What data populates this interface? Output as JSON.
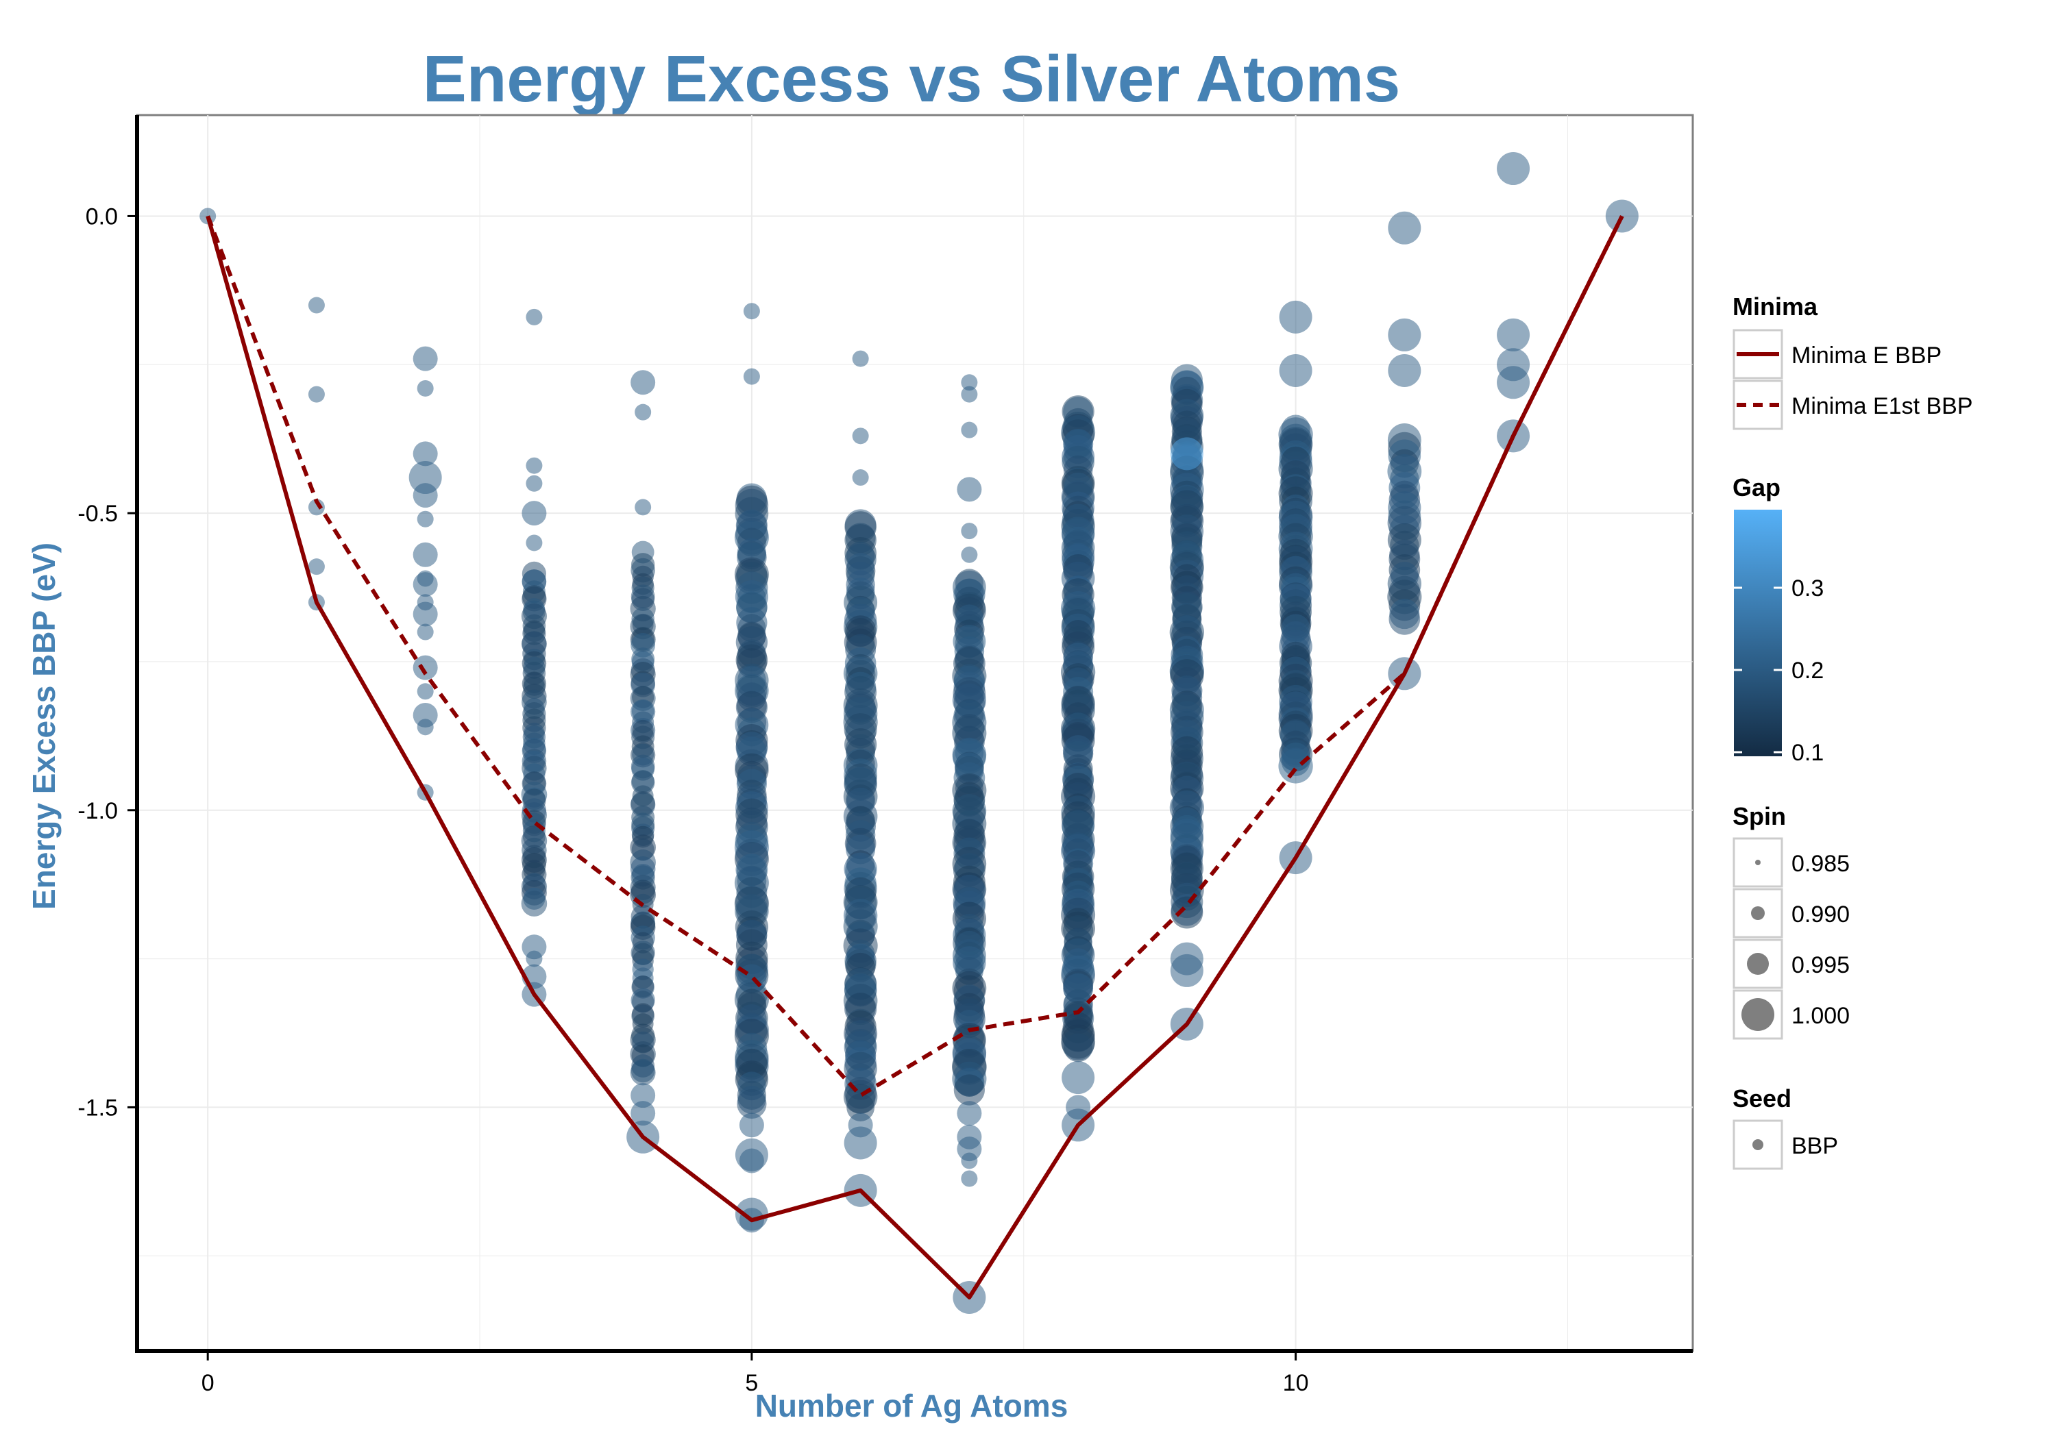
{
  "chart_data": {
    "type": "scatter",
    "title": "Energy Excess vs Silver Atoms",
    "xlabel": "Number of Ag Atoms",
    "ylabel": "Energy Excess BBP (eV)",
    "xlim": [
      -0.65,
      13.65
    ],
    "ylim": [
      -1.91,
      0.17
    ],
    "x_ticks": [
      0,
      5,
      10
    ],
    "x_tick_labels": [
      "0",
      "5",
      "10"
    ],
    "y_ticks": [
      0.0,
      -0.5,
      -1.0,
      -1.5
    ],
    "y_tick_labels": [
      "0.0",
      "-0.5",
      "-1.0",
      "-1.5"
    ],
    "grid": true,
    "legend_position": "right",
    "colors": {
      "title": "#4682B4",
      "points": "#2E5A87",
      "points_light": "#4EA4E6",
      "line": "#8B0000",
      "panel_border": "#7F7F7F",
      "grid": "#EBEBEB"
    },
    "lines": [
      {
        "name": "Minima E BBP",
        "style": "solid",
        "x": [
          0,
          1,
          2,
          3,
          4,
          5,
          6,
          7,
          8,
          9,
          10,
          11,
          12,
          13
        ],
        "y": [
          0.0,
          -0.65,
          -0.97,
          -1.31,
          -1.55,
          -1.69,
          -1.64,
          -1.82,
          -1.53,
          -1.36,
          -1.08,
          -0.77,
          -0.37,
          0.0
        ]
      },
      {
        "name": "Minima E1st BBP",
        "style": "dashed",
        "x": [
          0,
          1,
          2,
          3,
          4,
          5,
          6,
          7,
          8,
          9,
          10,
          11,
          12,
          13
        ],
        "y": [
          0.0,
          -0.48,
          -0.77,
          -1.02,
          -1.16,
          -1.28,
          -1.48,
          -1.37,
          -1.34,
          -1.16,
          -0.93,
          -0.77,
          -0.37,
          0.0
        ]
      }
    ],
    "points": {
      "marker_opacity": 0.5,
      "columns": [
        {
          "x": 0,
          "distribution": [],
          "extras": [
            {
              "y": 0.0,
              "spin": 0.99
            }
          ]
        },
        {
          "x": 1,
          "distribution": [],
          "extras": [
            {
              "y": -0.15,
              "spin": 0.99
            },
            {
              "y": -0.3,
              "spin": 0.99
            },
            {
              "y": -0.49,
              "spin": 0.99
            },
            {
              "y": -0.59,
              "spin": 0.99
            },
            {
              "y": -0.65,
              "spin": 0.99
            }
          ]
        },
        {
          "x": 2,
          "distribution": [],
          "extras": [
            {
              "y": -0.24,
              "spin": 0.995
            },
            {
              "y": -0.29,
              "spin": 0.99
            },
            {
              "y": -0.4,
              "spin": 0.995
            },
            {
              "y": -0.44,
              "spin": 1.0
            },
            {
              "y": -0.47,
              "spin": 0.995
            },
            {
              "y": -0.51,
              "spin": 0.99
            },
            {
              "y": -0.57,
              "spin": 0.995
            },
            {
              "y": -0.61,
              "spin": 0.99
            },
            {
              "y": -0.62,
              "spin": 0.995
            },
            {
              "y": -0.65,
              "spin": 0.99
            },
            {
              "y": -0.67,
              "spin": 0.995
            },
            {
              "y": -0.7,
              "spin": 0.99
            },
            {
              "y": -0.76,
              "spin": 0.995
            },
            {
              "y": -0.8,
              "spin": 0.99
            },
            {
              "y": -0.84,
              "spin": 0.995
            },
            {
              "y": -0.86,
              "spin": 0.99
            },
            {
              "y": -0.97,
              "spin": 0.99
            }
          ]
        },
        {
          "x": 3,
          "distribution": [
            -0.6,
            -1.16,
            60,
            0.995
          ],
          "extras": [
            {
              "y": -0.17,
              "spin": 0.99
            },
            {
              "y": -0.42,
              "spin": 0.99
            },
            {
              "y": -0.45,
              "spin": 0.99
            },
            {
              "y": -0.5,
              "spin": 0.995
            },
            {
              "y": -0.55,
              "spin": 0.99
            },
            {
              "y": -1.23,
              "spin": 0.995
            },
            {
              "y": -1.25,
              "spin": 0.99
            },
            {
              "y": -1.28,
              "spin": 0.995
            },
            {
              "y": -1.31,
              "spin": 0.995
            }
          ]
        },
        {
          "x": 4,
          "distribution": [
            -0.57,
            -1.45,
            80,
            0.995
          ],
          "extras": [
            {
              "y": -0.28,
              "spin": 0.995
            },
            {
              "y": -0.33,
              "spin": 0.99
            },
            {
              "y": -0.49,
              "spin": 0.99
            },
            {
              "y": -1.48,
              "spin": 0.995
            },
            {
              "y": -1.51,
              "spin": 0.995
            },
            {
              "y": -1.55,
              "spin": 1.0
            }
          ]
        },
        {
          "x": 5,
          "distribution": [
            -0.47,
            -1.5,
            100,
            1.0
          ],
          "extras": [
            {
              "y": -0.16,
              "spin": 0.99
            },
            {
              "y": -0.27,
              "spin": 0.99
            },
            {
              "y": -1.53,
              "spin": 0.995
            },
            {
              "y": -1.58,
              "spin": 1.0
            },
            {
              "y": -1.59,
              "spin": 0.995
            },
            {
              "y": -1.68,
              "spin": 1.0
            },
            {
              "y": -1.69,
              "spin": 0.995
            }
          ]
        },
        {
          "x": 6,
          "distribution": [
            -0.52,
            -1.5,
            100,
            1.0
          ],
          "extras": [
            {
              "y": -0.24,
              "spin": 0.99
            },
            {
              "y": -0.37,
              "spin": 0.99
            },
            {
              "y": -0.44,
              "spin": 0.99
            },
            {
              "y": -1.53,
              "spin": 0.995
            },
            {
              "y": -1.56,
              "spin": 1.0
            },
            {
              "y": -1.64,
              "spin": 1.0
            }
          ]
        },
        {
          "x": 7,
          "distribution": [
            -0.61,
            -1.47,
            100,
            1.0
          ],
          "extras": [
            {
              "y": -0.28,
              "spin": 0.99
            },
            {
              "y": -0.3,
              "spin": 0.99
            },
            {
              "y": -0.36,
              "spin": 0.99
            },
            {
              "y": -0.46,
              "spin": 0.995
            },
            {
              "y": -0.53,
              "spin": 0.99
            },
            {
              "y": -0.57,
              "spin": 0.99
            },
            {
              "y": -1.51,
              "spin": 0.995
            },
            {
              "y": -1.55,
              "spin": 0.995
            },
            {
              "y": -1.57,
              "spin": 0.995
            },
            {
              "y": -1.59,
              "spin": 0.99
            },
            {
              "y": -1.62,
              "spin": 0.99
            },
            {
              "y": -1.82,
              "spin": 1.0
            }
          ]
        },
        {
          "x": 8,
          "distribution": [
            -0.33,
            -1.4,
            140,
            1.0
          ],
          "extras": [
            {
              "y": -1.45,
              "spin": 1.0
            },
            {
              "y": -1.5,
              "spin": 0.995
            },
            {
              "y": -1.53,
              "spin": 1.0
            }
          ]
        },
        {
          "x": 9,
          "distribution": [
            -0.28,
            -1.17,
            120,
            1.0
          ],
          "extras": [
            {
              "y": -1.25,
              "spin": 1.0
            },
            {
              "y": -1.27,
              "spin": 1.0
            },
            {
              "y": -1.36,
              "spin": 1.0
            },
            {
              "y": -0.4,
              "spin": 1.0,
              "gap": 0.36
            }
          ]
        },
        {
          "x": 10,
          "distribution": [
            -0.36,
            -0.93,
            80,
            1.0
          ],
          "extras": [
            {
              "y": -0.17,
              "spin": 1.0
            },
            {
              "y": -0.26,
              "spin": 1.0
            },
            {
              "y": -1.08,
              "spin": 1.0
            }
          ]
        },
        {
          "x": 11,
          "distribution": [
            -0.38,
            -0.68,
            25,
            1.0
          ],
          "extras": [
            {
              "y": -0.02,
              "spin": 1.0
            },
            {
              "y": -0.2,
              "spin": 1.0
            },
            {
              "y": -0.26,
              "spin": 1.0
            },
            {
              "y": -0.77,
              "spin": 1.0
            }
          ]
        },
        {
          "x": 12,
          "distribution": [],
          "extras": [
            {
              "y": 0.08,
              "spin": 1.0
            },
            {
              "y": -0.2,
              "spin": 1.0
            },
            {
              "y": -0.25,
              "spin": 1.0
            },
            {
              "y": -0.28,
              "spin": 1.0
            },
            {
              "y": -0.37,
              "spin": 1.0
            }
          ]
        },
        {
          "x": 13,
          "distribution": [],
          "extras": [
            {
              "y": 0.0,
              "spin": 1.0
            }
          ]
        }
      ]
    },
    "legend": {
      "minima": {
        "title": "Minima",
        "entries": [
          {
            "label": "Minima E BBP",
            "style": "solid"
          },
          {
            "label": "Minima E1st BBP",
            "style": "dashed"
          }
        ]
      },
      "gap": {
        "title": "Gap",
        "range": [
          0.095,
          0.395
        ],
        "ticks": [
          0.3,
          0.2,
          0.1
        ],
        "tick_labels": [
          "0.3",
          "0.2",
          "0.1"
        ],
        "color_low": "#132B43",
        "color_high": "#56B1F7"
      },
      "spin": {
        "title": "Spin",
        "entries": [
          {
            "label": "0.985",
            "value": 0.985
          },
          {
            "label": "0.990",
            "value": 0.99
          },
          {
            "label": "0.995",
            "value": 0.995
          },
          {
            "label": "1.000",
            "value": 1.0
          }
        ]
      },
      "seed": {
        "title": "Seed",
        "entries": [
          {
            "label": "BBP"
          }
        ]
      }
    }
  }
}
